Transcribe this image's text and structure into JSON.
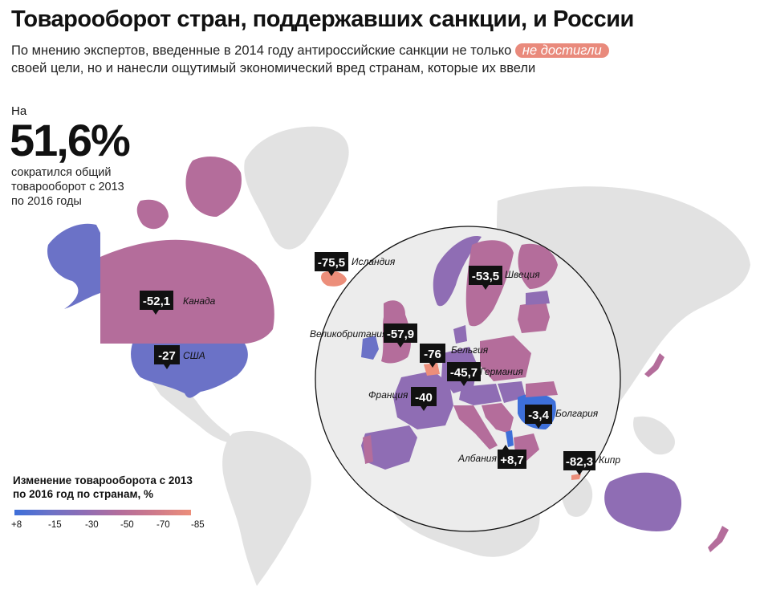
{
  "header": {
    "title": "Товарооборот стран, поддержавших санкции, и России",
    "subtitle_part1": "По мнению экспертов, введенные в 2014 году антироссийские санкции не только",
    "subtitle_highlight": "не достигли",
    "subtitle_part2": "своей цели, но и нанесли ощутимый экономический вред странам, которые их ввели"
  },
  "stat": {
    "prefix": "На",
    "value": "51,6%",
    "description": "сократился общий товарооборот с 2013 по 2016 годы"
  },
  "legend": {
    "title": "Изменение товарооборота с 2013 по 2016 год по странам, %",
    "ticks": [
      "+8",
      "-15",
      "-30",
      "-50",
      "-70",
      "-85"
    ],
    "colors": [
      "#3d6fd9",
      "#6b72c7",
      "#8f6db4",
      "#b46d9b",
      "#cf7a8a",
      "#ec8e7a"
    ]
  },
  "colors": {
    "land": "#e2e2e2",
    "badge": "#111111"
  },
  "countries": [
    {
      "name": "Исландия",
      "value": "-75,5"
    },
    {
      "name": "Канада",
      "value": "-52,1"
    },
    {
      "name": "США",
      "value": "-27"
    },
    {
      "name": "Швеция",
      "value": "-53,5"
    },
    {
      "name": "Великобритания",
      "value": "-57,9"
    },
    {
      "name": "Бельгия",
      "value": "-76"
    },
    {
      "name": "Германия",
      "value": "-45,7"
    },
    {
      "name": "Франция",
      "value": "-40"
    },
    {
      "name": "Болгария",
      "value": "-3,4"
    },
    {
      "name": "Албания",
      "value": "+8,7"
    },
    {
      "name": "Кипр",
      "value": "-82,3"
    }
  ]
}
